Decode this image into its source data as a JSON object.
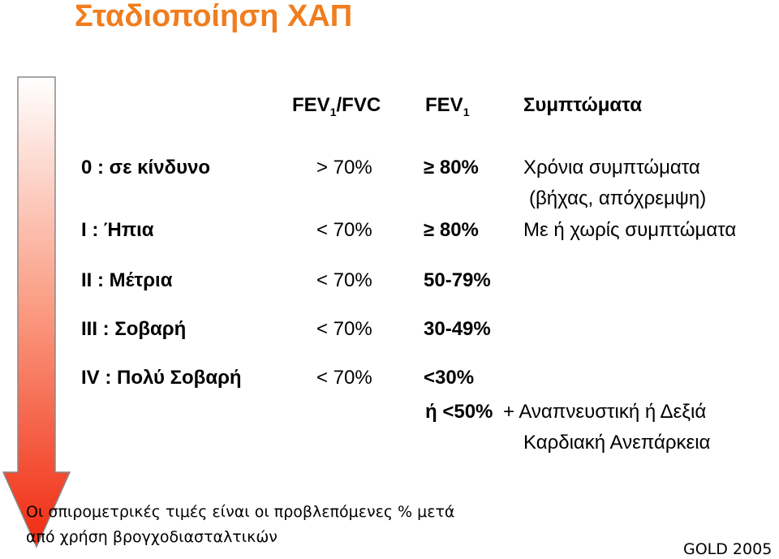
{
  "title": "Σταδιοποίηση ΧΑΠ",
  "headers": {
    "ratio": {
      "name": "FEV",
      "sub": "1",
      "suffix": "/FVC"
    },
    "fev1": {
      "name": "FEV",
      "sub": "1"
    },
    "symptoms": "Συμπτώματα"
  },
  "rows": [
    {
      "stage": "0 : σε κίνδυνο",
      "ratio": "> 70%",
      "fev1": [
        "≥ 80%"
      ],
      "symptoms": [
        "Χρόνια συμπτώματα",
        "(βήχας, απόχρεμψη)"
      ]
    },
    {
      "stage": "I : Ήπια",
      "ratio": "< 70%",
      "fev1": [
        "≥ 80%"
      ],
      "symptoms": [
        "Με ή χωρίς συμπτώματα"
      ]
    },
    {
      "stage": "II : Μέτρια",
      "ratio": "< 70%",
      "fev1": [
        "50-79%"
      ]
    },
    {
      "stage": "III : Σοβαρή",
      "ratio": "< 70%",
      "fev1": [
        "30-49%"
      ]
    },
    {
      "stage": "IV : Πολύ Σοβαρή",
      "ratio": "< 70%",
      "fev1": [
        "<30%",
        "ή <50%"
      ],
      "symptoms": [
        "+ Αναπνευστική ή Δεξιά",
        "Καρδιακή Ανεπάρκεια"
      ]
    }
  ],
  "note": [
    "Οι σπιρομετρικές τιμές είναι οι προβλεπόμενες % μετά",
    "από χρήση βρογχοδιασταλτικών"
  ],
  "source": "GOLD 2005"
}
